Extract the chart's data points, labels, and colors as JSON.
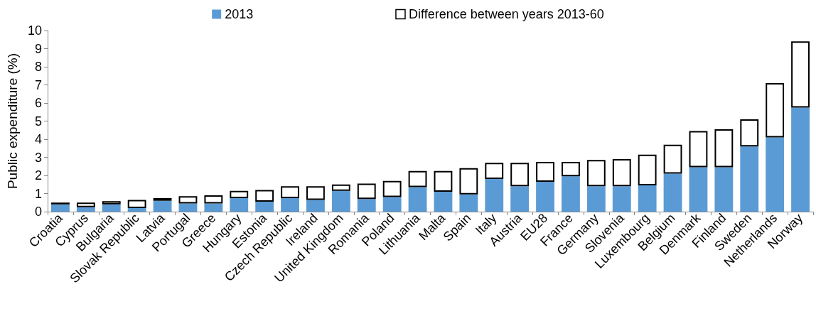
{
  "chart_data": {
    "type": "bar",
    "stacked": true,
    "ylabel": "Public expenditure (%)",
    "categories": [
      "Croatia",
      "Cyprus",
      "Bulgaria",
      "Slovak Republic",
      "Latvia",
      "Portugal",
      "Greece",
      "Hungary",
      "Estonia",
      "Czech Republic",
      "Ireland",
      "United Kingdom",
      "Romania",
      "Poland",
      "Lithuania",
      "Malta",
      "Spain",
      "Italy",
      "Austria",
      "EU28",
      "France",
      "Germany",
      "Slovenia",
      "Luxembourg",
      "Belgium",
      "Denmark",
      "Finland",
      "Sweden",
      "Netherlands",
      "Norway"
    ],
    "series": [
      {
        "name": "2013",
        "color": "#5b9bd5",
        "values": [
          0.4,
          0.25,
          0.4,
          0.2,
          0.6,
          0.45,
          0.45,
          0.75,
          0.55,
          0.75,
          0.65,
          1.15,
          0.7,
          0.8,
          1.35,
          1.1,
          0.95,
          1.8,
          1.4,
          1.65,
          1.95,
          1.4,
          1.4,
          1.45,
          2.1,
          2.45,
          2.45,
          3.6,
          4.1,
          5.75
        ]
      },
      {
        "name": "Difference between years 2013-60",
        "color": "#ffffff",
        "values": [
          0.1,
          0.25,
          0.18,
          0.45,
          0.15,
          0.4,
          0.45,
          0.4,
          0.65,
          0.65,
          0.75,
          0.35,
          0.85,
          0.9,
          0.9,
          1.15,
          1.45,
          0.9,
          1.3,
          1.1,
          0.8,
          1.45,
          1.5,
          1.7,
          1.6,
          2.0,
          2.1,
          1.5,
          3.0,
          3.65
        ]
      }
    ],
    "ylim": [
      0,
      10
    ],
    "yticks": [
      0,
      1,
      2,
      3,
      4,
      5,
      6,
      7,
      8,
      9,
      10
    ],
    "grid": false,
    "legend": "top"
  }
}
